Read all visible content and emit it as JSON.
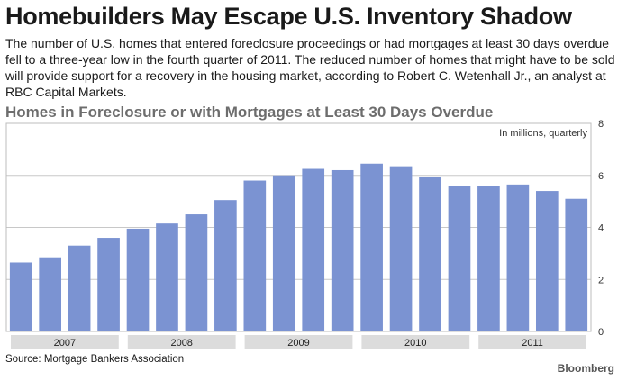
{
  "headline": "Homebuilders May Escape U.S. Inventory Shadow",
  "deck": "The number of U.S. homes that entered foreclosure proceedings or had mortgages at least 30 days overdue fell to a three-year low in the fourth quarter of 2011. The reduced number of homes that might have to be sold will provide support for a recovery in the housing market, according to Robert C. Wetenhall Jr., an analyst at RBC Capital Markets.",
  "source": "Source: Mortgage Bankers Association",
  "brand": "Bloomberg",
  "colors": {
    "bar": "#7b93d2",
    "grid": "#c8c8c8",
    "frame": "#bdbdbd",
    "year_band": "#dcdcdc"
  },
  "chart_data": {
    "type": "bar",
    "title": "Homes in Foreclosure or with Mortgages at Least 30 Days Overdue",
    "unit_note": "In millions, quarterly",
    "y_axis_side": "right",
    "ylim": [
      0,
      8
    ],
    "yticks": [
      0,
      2,
      4,
      6,
      8
    ],
    "grid": true,
    "year_labels": [
      "2007",
      "2008",
      "2009",
      "2010",
      "2011"
    ],
    "categories": [
      "2007 Q1",
      "2007 Q2",
      "2007 Q3",
      "2007 Q4",
      "2008 Q1",
      "2008 Q2",
      "2008 Q3",
      "2008 Q4",
      "2009 Q1",
      "2009 Q2",
      "2009 Q3",
      "2009 Q4",
      "2010 Q1",
      "2010 Q2",
      "2010 Q3",
      "2010 Q4",
      "2011 Q1",
      "2011 Q2",
      "2011 Q3",
      "2011 Q4"
    ],
    "values": [
      2.65,
      2.85,
      3.3,
      3.6,
      3.95,
      4.15,
      4.5,
      5.05,
      5.8,
      6.0,
      6.25,
      6.2,
      6.45,
      6.35,
      5.95,
      5.6,
      5.6,
      5.65,
      5.4,
      5.1
    ]
  }
}
